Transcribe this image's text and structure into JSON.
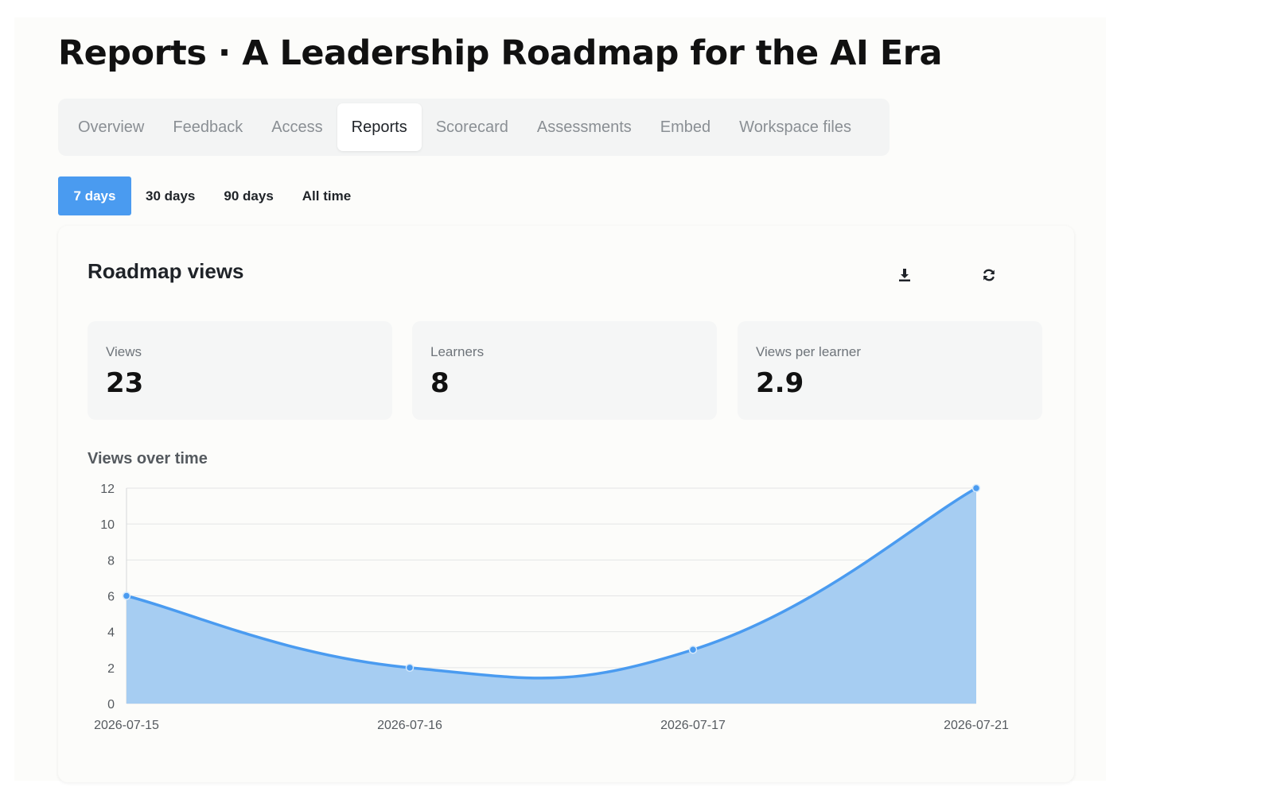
{
  "page_title": "Reports · A Leadership Roadmap for the AI Era",
  "tabs": [
    {
      "label": "Overview",
      "active": false
    },
    {
      "label": "Feedback",
      "active": false
    },
    {
      "label": "Access",
      "active": false
    },
    {
      "label": "Reports",
      "active": true
    },
    {
      "label": "Scorecard",
      "active": false
    },
    {
      "label": "Assessments",
      "active": false
    },
    {
      "label": "Embed",
      "active": false
    },
    {
      "label": "Workspace files",
      "active": false
    }
  ],
  "ranges": [
    {
      "label": "7 days",
      "active": true
    },
    {
      "label": "30 days",
      "active": false
    },
    {
      "label": "90 days",
      "active": false
    },
    {
      "label": "All time",
      "active": false
    }
  ],
  "card": {
    "title": "Roadmap views",
    "download_icon": "download-icon",
    "refresh_icon": "refresh-icon"
  },
  "stats": [
    {
      "label": "Views",
      "value": "23"
    },
    {
      "label": "Learners",
      "value": "8"
    },
    {
      "label": "Views per learner",
      "value": "2.9"
    }
  ],
  "colors": {
    "accent": "#4a9bf0",
    "line": "#4a9bf0",
    "fill": "#a6cdf2"
  },
  "chart_data": {
    "type": "area",
    "title": "Views over time",
    "xlabel": "",
    "ylabel": "",
    "x": [
      "2026-07-15",
      "2026-07-16",
      "2026-07-17",
      "2026-07-21"
    ],
    "series": [
      {
        "values": [
          6,
          2,
          3,
          12
        ]
      }
    ],
    "ylim": [
      0,
      12
    ],
    "yticks": [
      0,
      2,
      4,
      6,
      8,
      10,
      12
    ],
    "grid": true,
    "smooth": true
  }
}
